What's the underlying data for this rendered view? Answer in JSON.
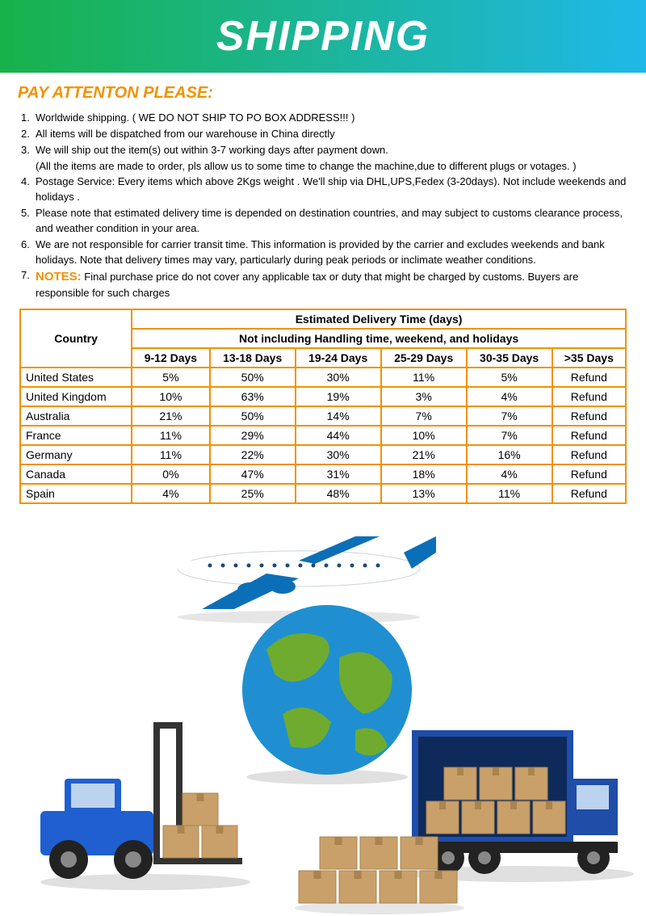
{
  "banner": {
    "title": "SHIPPING",
    "gradient_from": "#18b24a",
    "gradient_to": "#1fb8e8",
    "title_color": "#ffffff",
    "title_fontsize": 52
  },
  "subtitle": {
    "text": "PAY ATTENTON PLEASE:",
    "color": "#f29100"
  },
  "notes": {
    "color": "#000000",
    "label_color": "#f29100",
    "items": [
      {
        "n": "1.",
        "t": "Worldwide shipping. ( WE DO NOT SHIP TO PO BOX ADDRESS!!! )"
      },
      {
        "n": "2.",
        "t": "All items will be dispatched from our warehouse in China directly"
      },
      {
        "n": "3.",
        "t": "We will ship out the item(s) out within 3-7 working days after payment down."
      },
      {
        "n": "",
        "t": "(All the items are made to order, pls allow us to  some time to change the machine,due to different plugs or votages. )"
      },
      {
        "n": "4.",
        "t": "Postage Service: Every items which above 2Kgs weight . We'll ship via DHL,UPS,Fedex (3-20days). Not include weekends and holidays ."
      },
      {
        "n": "5.",
        "t": "Please note that estimated delivery time is depended on destination countries, and may subject to customs clearance process, and weather condition in your area."
      },
      {
        "n": "6.",
        "t": "We are not responsible for carrier transit time. This information is provided by the carrier and excludes weekends and bank holidays. Note that delivery times may vary, particularly during peak periods or inclimate weather conditions."
      }
    ],
    "final": {
      "n": "7.",
      "label": "NOTES:",
      "t": " Final purchase price do not cover any applicable tax or duty that might be charged by customs. Buyers are responsible for such charges"
    }
  },
  "table": {
    "type": "table",
    "border_color": "#f29100",
    "header_bg": "#ffffff",
    "header1": "Country",
    "header2": "Estimated Delivery Time (days)",
    "header3": "Not including Handling time, weekend, and holidays",
    "columns": [
      "9-12 Days",
      "13-18 Days",
      "19-24 Days",
      "25-29 Days",
      "30-35 Days",
      ">35 Days"
    ],
    "rows": [
      {
        "c": "United States",
        "v": [
          "5%",
          "50%",
          "30%",
          "11%",
          "5%",
          "Refund"
        ]
      },
      {
        "c": "United Kingdom",
        "v": [
          "10%",
          "63%",
          "19%",
          "3%",
          "4%",
          "Refund"
        ]
      },
      {
        "c": "Australia",
        "v": [
          "21%",
          "50%",
          "14%",
          "7%",
          "7%",
          "Refund"
        ]
      },
      {
        "c": "France",
        "v": [
          "11%",
          "29%",
          "44%",
          "10%",
          "7%",
          "Refund"
        ]
      },
      {
        "c": "Germany",
        "v": [
          "11%",
          "22%",
          "30%",
          "21%",
          "16%",
          "Refund"
        ]
      },
      {
        "c": "Canada",
        "v": [
          "0%",
          "47%",
          "31%",
          "18%",
          "4%",
          "Refund"
        ]
      },
      {
        "c": "Spain",
        "v": [
          "4%",
          "25%",
          "48%",
          "13%",
          "11%",
          "Refund"
        ]
      }
    ]
  },
  "illustration": {
    "plane_body": "#ffffff",
    "plane_accent": "#0b6fb8",
    "globe_ocean": "#1f8fd1",
    "globe_land": "#6fab2f",
    "forklift_body": "#1f5fd0",
    "truck_body": "#1f4da8",
    "box_fill": "#c9a06a",
    "box_dark": "#a9844f",
    "shadow": "#d9d9d9"
  }
}
